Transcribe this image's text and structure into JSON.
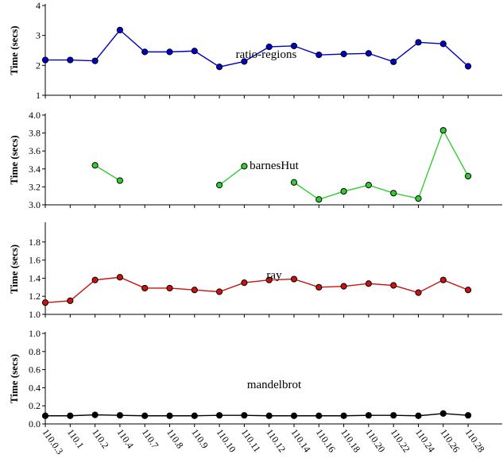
{
  "chart_data": [
    {
      "type": "line",
      "title": "ratio-regions",
      "ylabel": "Time (secs)",
      "ylim": [
        1,
        4
      ],
      "yticks": [
        1,
        2,
        3,
        4
      ],
      "ytick_labels": [
        "1",
        "2",
        "3",
        "4"
      ],
      "color": "#0000cc",
      "series": [
        {
          "values": [
            2.18,
            2.18,
            2.15,
            3.18,
            2.45,
            2.45,
            2.48,
            1.95,
            2.13,
            2.62,
            2.65,
            2.35,
            2.38,
            2.4,
            2.12,
            2.77,
            2.72,
            1.97
          ]
        }
      ]
    },
    {
      "type": "line",
      "title": "barnesHut",
      "ylabel": "Time (secs)",
      "ylim": [
        3.0,
        4.0
      ],
      "yticks": [
        3.0,
        3.2,
        3.4,
        3.6,
        3.8,
        4.0
      ],
      "ytick_labels": [
        "3.0",
        "3.2",
        "3.4",
        "3.6",
        "3.8",
        "4.0"
      ],
      "color": "#33cc33",
      "series": [
        {
          "values": [
            null,
            null,
            3.44,
            3.27,
            null,
            null,
            null,
            3.22,
            3.43,
            null,
            3.25,
            3.06,
            3.15,
            3.22,
            3.13,
            3.07,
            3.83,
            3.32
          ]
        }
      ]
    },
    {
      "type": "line",
      "title": "ray",
      "ylabel": "Time (secs)",
      "ylim": [
        1.0,
        2.0
      ],
      "yticks": [
        1.0,
        1.2,
        1.4,
        1.6,
        1.8
      ],
      "ytick_labels": [
        "1.0",
        "1.2",
        "1.4",
        "1.6",
        "1.8"
      ],
      "color": "#cc1111",
      "series": [
        {
          "values": [
            1.13,
            1.15,
            1.38,
            1.41,
            1.29,
            1.29,
            1.27,
            1.25,
            1.35,
            1.38,
            1.39,
            1.3,
            1.31,
            1.34,
            1.32,
            1.24,
            1.38,
            1.27
          ]
        }
      ]
    },
    {
      "type": "line",
      "title": "mandelbrot",
      "ylabel": "Time (secs)",
      "ylim": [
        0.0,
        1.0
      ],
      "yticks": [
        0.0,
        0.2,
        0.4,
        0.6,
        0.8,
        1.0
      ],
      "ytick_labels": [
        "0.0",
        "0.2",
        "0.4",
        "0.6",
        "0.8",
        "1.0"
      ],
      "color": "#000000",
      "series": [
        {
          "values": [
            0.09,
            0.09,
            0.1,
            0.095,
            0.09,
            0.09,
            0.09,
            0.095,
            0.095,
            0.09,
            0.09,
            0.09,
            0.09,
            0.095,
            0.095,
            0.09,
            0.115,
            0.095
          ]
        }
      ]
    }
  ],
  "x_categories": [
    "110.0.3",
    "110.1",
    "110.2",
    "110.4",
    "110.7",
    "110.8",
    "110.9",
    "110.10",
    "110.11",
    "110.12",
    "110.14",
    "110.16",
    "110.18",
    "110.20",
    "110.22",
    "110.24",
    "110.26",
    "110.28"
  ]
}
